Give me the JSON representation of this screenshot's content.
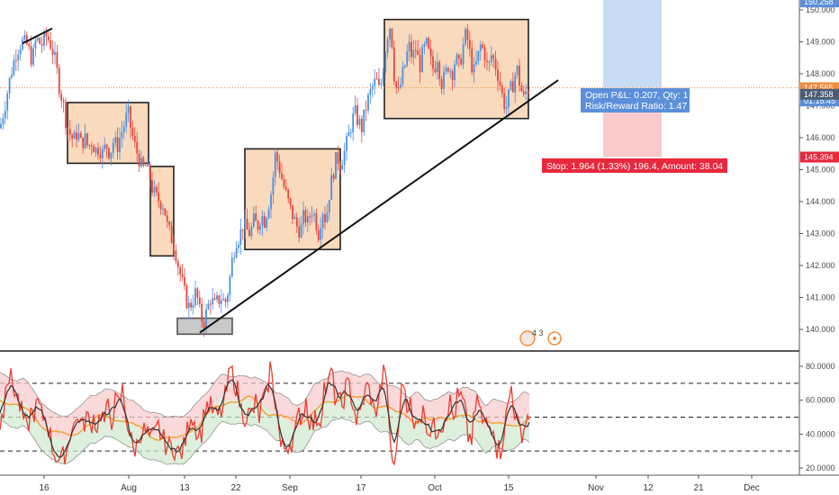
{
  "chart_data": {
    "type": "candlestick",
    "main": {
      "y_ticks": [
        "140.000",
        "141.000",
        "142.000",
        "143.000",
        "144.000",
        "145.000",
        "146.000",
        "147.000",
        "148.000",
        "149.000",
        "150.000"
      ],
      "ylim": [
        139.6,
        150.3
      ],
      "x_ticks": [
        "16",
        "Aug",
        "13",
        "22",
        "Sep",
        "17",
        "Oct",
        "15",
        "Nov",
        "12",
        "21",
        "Dec"
      ],
      "close_path": [
        [
          0,
          146.3
        ],
        [
          6,
          147.1
        ],
        [
          12,
          148.0
        ],
        [
          18,
          148.7
        ],
        [
          24,
          149.0
        ],
        [
          30,
          148.9
        ],
        [
          36,
          148.4
        ],
        [
          40,
          149.1
        ],
        [
          46,
          148.9
        ],
        [
          52,
          149.2
        ],
        [
          58,
          148.8
        ],
        [
          62,
          148.3
        ],
        [
          66,
          147.6
        ],
        [
          70,
          147.1
        ],
        [
          74,
          146.4
        ],
        [
          78,
          146.1
        ],
        [
          82,
          145.9
        ],
        [
          86,
          146.2
        ],
        [
          90,
          145.8
        ],
        [
          94,
          146.0
        ],
        [
          98,
          145.7
        ],
        [
          102,
          145.9
        ],
        [
          106,
          145.6
        ],
        [
          110,
          145.7
        ],
        [
          114,
          145.5
        ],
        [
          118,
          145.8
        ],
        [
          122,
          145.5
        ],
        [
          126,
          145.9
        ],
        [
          130,
          145.7
        ],
        [
          134,
          146.1
        ],
        [
          138,
          146.4
        ],
        [
          142,
          146.8
        ],
        [
          146,
          146.2
        ],
        [
          150,
          145.7
        ],
        [
          154,
          145.4
        ],
        [
          158,
          145.0
        ],
        [
          162,
          145.1
        ],
        [
          166,
          144.8
        ],
        [
          170,
          144.3
        ],
        [
          174,
          144.1
        ],
        [
          178,
          144.0
        ],
        [
          182,
          143.9
        ],
        [
          186,
          143.2
        ],
        [
          190,
          142.9
        ],
        [
          194,
          142.6
        ],
        [
          198,
          142.0
        ],
        [
          202,
          141.5
        ],
        [
          206,
          141.0
        ],
        [
          210,
          140.7
        ],
        [
          214,
          140.9
        ],
        [
          218,
          141.2
        ],
        [
          222,
          140.5
        ],
        [
          226,
          140.2
        ],
        [
          230,
          140.6
        ],
        [
          234,
          141.0
        ],
        [
          238,
          140.7
        ],
        [
          242,
          140.9
        ],
        [
          246,
          141.0
        ],
        [
          250,
          140.8
        ],
        [
          254,
          141.3
        ],
        [
          258,
          142.2
        ],
        [
          262,
          142.8
        ],
        [
          266,
          142.9
        ],
        [
          270,
          143.3
        ],
        [
          274,
          143.1
        ],
        [
          278,
          143.0
        ],
        [
          282,
          143.4
        ],
        [
          286,
          143.2
        ],
        [
          290,
          143.6
        ],
        [
          294,
          143.4
        ],
        [
          298,
          143.9
        ],
        [
          302,
          144.4
        ],
        [
          306,
          145.5
        ],
        [
          310,
          145.1
        ],
        [
          314,
          144.6
        ],
        [
          318,
          144.2
        ],
        [
          322,
          143.8
        ],
        [
          326,
          143.5
        ],
        [
          330,
          143.2
        ],
        [
          334,
          143.1
        ],
        [
          338,
          143.6
        ],
        [
          342,
          143.3
        ],
        [
          346,
          143.8
        ],
        [
          350,
          143.5
        ],
        [
          354,
          143.0
        ],
        [
          358,
          143.8
        ],
        [
          362,
          143.4
        ],
        [
          366,
          144.3
        ],
        [
          370,
          144.9
        ],
        [
          374,
          145.4
        ],
        [
          378,
          145.2
        ],
        [
          382,
          145.5
        ],
        [
          386,
          145.9
        ],
        [
          390,
          146.4
        ],
        [
          394,
          146.8
        ],
        [
          398,
          146.5
        ],
        [
          402,
          146.3
        ],
        [
          406,
          146.9
        ],
        [
          410,
          147.3
        ],
        [
          414,
          147.6
        ],
        [
          418,
          147.8
        ],
        [
          422,
          147.4
        ],
        [
          426,
          148.3
        ],
        [
          430,
          149.2
        ],
        [
          434,
          149.6
        ],
        [
          438,
          147.9
        ],
        [
          442,
          147.3
        ],
        [
          446,
          147.8
        ],
        [
          450,
          148.3
        ],
        [
          454,
          148.9
        ],
        [
          458,
          148.5
        ],
        [
          462,
          148.8
        ],
        [
          466,
          148.2
        ],
        [
          470,
          148.7
        ],
        [
          474,
          148.9
        ],
        [
          478,
          148.4
        ],
        [
          482,
          148.1
        ],
        [
          486,
          148.6
        ],
        [
          490,
          147.7
        ],
        [
          494,
          147.9
        ],
        [
          498,
          148.3
        ],
        [
          502,
          148.0
        ],
        [
          506,
          148.5
        ],
        [
          510,
          148.2
        ],
        [
          514,
          148.8
        ],
        [
          518,
          149.3
        ],
        [
          522,
          148.6
        ],
        [
          526,
          148.0
        ],
        [
          530,
          148.4
        ],
        [
          534,
          148.9
        ],
        [
          538,
          148.7
        ],
        [
          542,
          148.1
        ],
        [
          546,
          148.6
        ],
        [
          550,
          148.3
        ],
        [
          554,
          147.9
        ],
        [
          558,
          147.3
        ],
        [
          562,
          146.9
        ],
        [
          566,
          147.4
        ],
        [
          570,
          147.7
        ],
        [
          574,
          148.2
        ],
        [
          578,
          147.6
        ],
        [
          582,
          147.2
        ],
        [
          586,
          147.6
        ],
        [
          588,
          147.4
        ]
      ],
      "boxes": [
        {
          "x": [
            75,
            165
          ],
          "y": [
            145.2,
            147.1
          ]
        },
        {
          "x": [
            167,
            193
          ],
          "y": [
            142.3,
            145.1
          ]
        },
        {
          "x": [
            272,
            378
          ],
          "y": [
            142.5,
            145.65
          ]
        },
        {
          "x": [
            427,
            587
          ],
          "y": [
            146.6,
            149.7
          ]
        },
        {
          "x": [
            197,
            258
          ],
          "y": [
            139.85,
            140.35
          ]
        }
      ],
      "trendlines": [
        {
          "x": [
            25,
            58
          ],
          "y": [
            148.95,
            149.42
          ]
        },
        {
          "x": [
            222,
            620
          ],
          "y": [
            139.9,
            147.8
          ]
        }
      ],
      "position": {
        "x": [
          670,
          735
        ],
        "profit_range": [
          147.565,
          150.3
        ],
        "loss_range": [
          145.394,
          147.3
        ],
        "open_pnl_label": "Open P&L: 0.207, Qty: 1",
        "risk_reward_label": "Risk/Reward Ratio: 1.47",
        "stop_label": "Stop: 1.964 (1.33%) 196.4, Amount: 38.04"
      },
      "price_tags": [
        {
          "value": 150.25,
          "label": "150.258",
          "color": "#5b8fd9"
        },
        {
          "value": 147.565,
          "label": "147.565",
          "color": "#f28b3e"
        },
        {
          "value": 147.15,
          "label": "01:15:45",
          "color": "#5b8fd9"
        },
        {
          "value": 147.358,
          "label": "147.358",
          "color": "#4a5b72"
        },
        {
          "value": 145.394,
          "label": "145.394",
          "color": "#e8283d"
        }
      ],
      "current_price": 147.565,
      "events_label": "4 3"
    },
    "oscillator": {
      "y_ticks": [
        "20.0000",
        "40.0000",
        "60.0000",
        "80.0000"
      ],
      "ylim": [
        12,
        88
      ],
      "levels": [
        70,
        50,
        30
      ]
    }
  }
}
